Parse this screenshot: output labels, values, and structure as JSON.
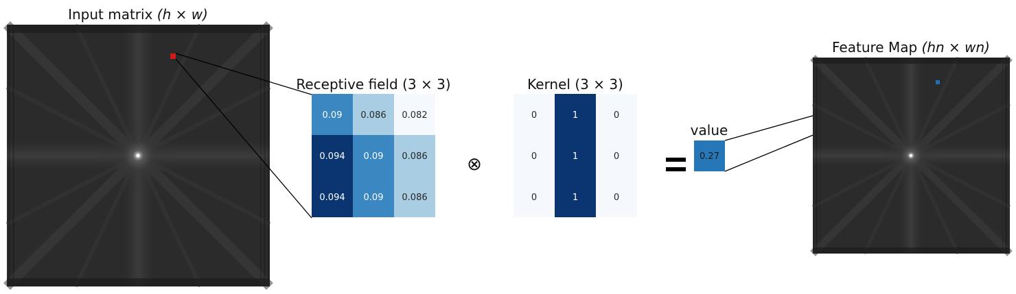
{
  "input_matrix": {
    "title": "Input matrix ",
    "title_math": "(h × w)",
    "background": "#2b2b2b",
    "highlight_color": "#d11a1a"
  },
  "receptive_field": {
    "title": "Receptive field (3 × 3)",
    "cells": [
      [
        "0.09",
        "0.086",
        "0.082"
      ],
      [
        "0.094",
        "0.09",
        "0.086"
      ],
      [
        "0.094",
        "0.09",
        "0.086"
      ]
    ],
    "colors": [
      [
        "#3a87c2",
        "#a9cde3",
        "#f5f9fe"
      ],
      [
        "#0a3570",
        "#3a87c2",
        "#a9cde3"
      ],
      [
        "#0a3570",
        "#3a87c2",
        "#a9cde3"
      ]
    ]
  },
  "operator_convolve": "⊗",
  "kernel": {
    "title": "Kernel (3 × 3)",
    "cells": [
      [
        "0",
        "1",
        "0"
      ],
      [
        "0",
        "1",
        "0"
      ],
      [
        "0",
        "1",
        "0"
      ]
    ],
    "colors": [
      [
        "#f5f9fe",
        "#0a3570",
        "#f5f9fe"
      ],
      [
        "#f5f9fe",
        "#0a3570",
        "#f5f9fe"
      ],
      [
        "#f5f9fe",
        "#0a3570",
        "#f5f9fe"
      ]
    ]
  },
  "operator_equals": "=",
  "value": {
    "label": "value",
    "number": "0.27",
    "color": "#2677b8"
  },
  "feature_map": {
    "title": "Feature Map ",
    "title_math": "(hn × wn)",
    "highlight_color": "#1f6fb5"
  }
}
